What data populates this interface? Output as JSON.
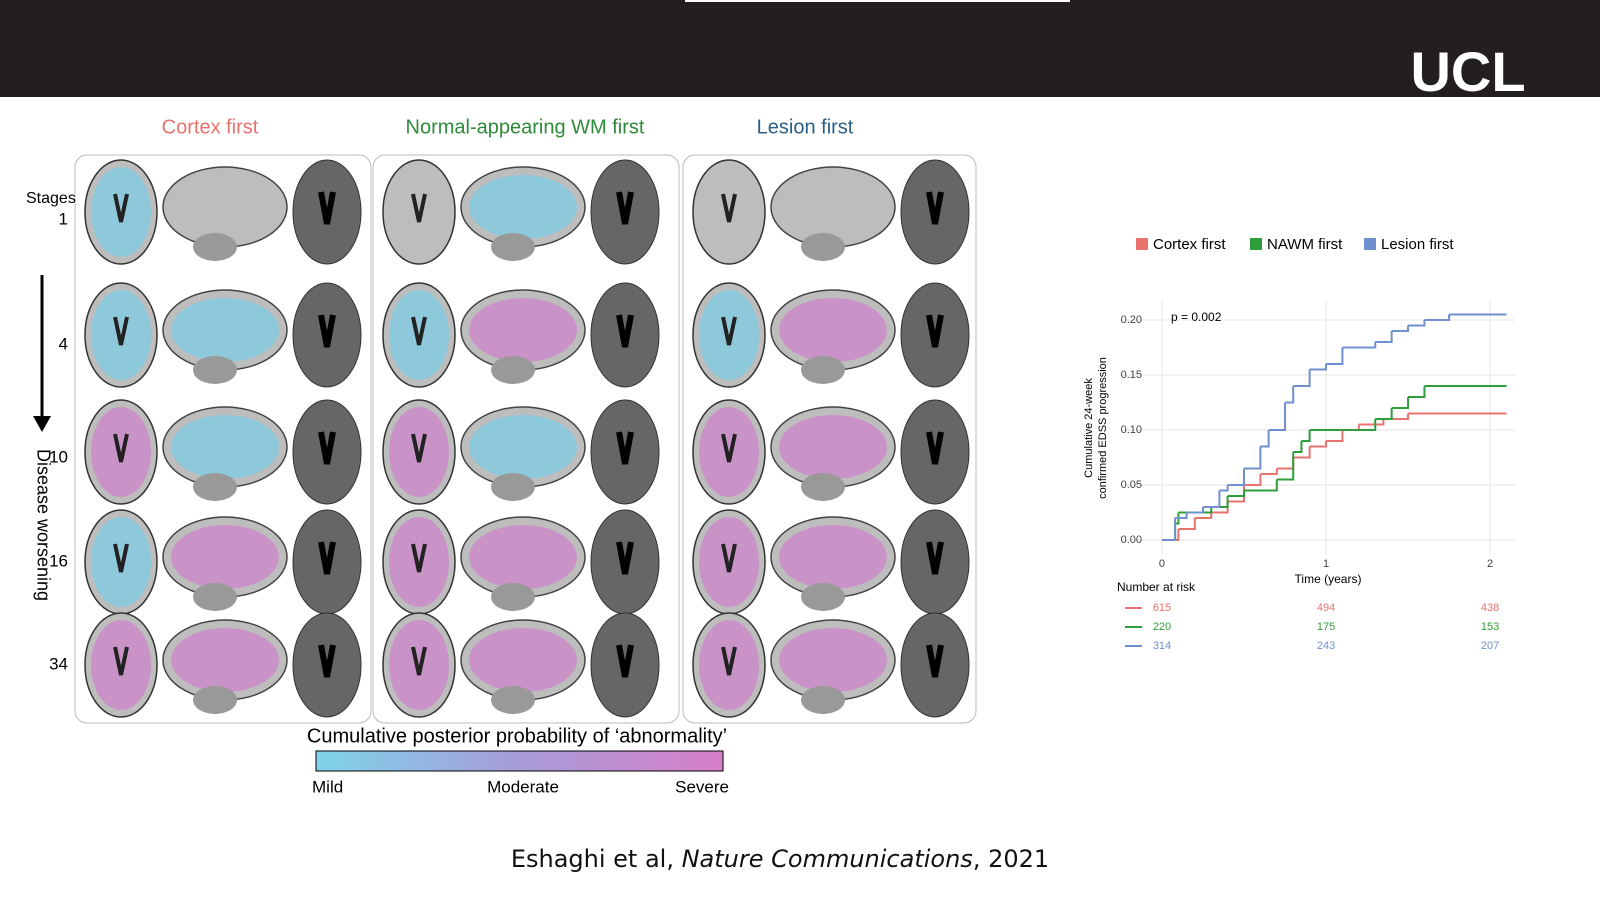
{
  "header": {
    "logo": "UCL"
  },
  "figure": {
    "columns": [
      "Cortex first",
      "Normal-appearing WM first",
      "Lesion first"
    ],
    "stages_label": "Stages",
    "stages": [
      "1",
      "4",
      "10",
      "16",
      "34"
    ],
    "arrow_label": "Disease worsening",
    "colorbar": {
      "title": "Cumulative posterior probability of ‘abnormality’",
      "labels": [
        "Mild",
        "Moderate",
        "Severe"
      ]
    }
  },
  "chart_data": {
    "type": "step",
    "annotation": "p = 0.002",
    "xlabel": "Time (years)",
    "ylabel": [
      "Cumulative 24-week",
      "confirmed EDSS progression"
    ],
    "xlim": [
      -0.256,
      2.152
    ],
    "ylim": [
      -0.0136,
      0.2182
    ],
    "xticks": [
      0,
      1,
      2
    ],
    "yticks": [
      {
        "value": 0,
        "label": "0.00"
      },
      {
        "value": 0.05,
        "label": "0.05"
      },
      {
        "value": 0.1,
        "label": "0.10"
      },
      {
        "value": 0.15,
        "label": "0.15"
      },
      {
        "value": 0.2,
        "label": "0.20"
      }
    ],
    "grid": true,
    "risk_title": "Number at risk",
    "series": [
      {
        "name": "Cortex first",
        "color": "#e8726e",
        "x": [
          0,
          0.1,
          0.2,
          0.3,
          0.4,
          0.5,
          0.6,
          0.7,
          0.8,
          0.9,
          1.0,
          1.1,
          1.2,
          1.35,
          1.5,
          2.1
        ],
        "values": [
          0,
          0.01,
          0.02,
          0.025,
          0.035,
          0.05,
          0.06,
          0.065,
          0.075,
          0.085,
          0.09,
          0.1,
          0.105,
          0.11,
          0.115,
          0.115
        ],
        "at_risk": [
          615,
          494,
          438
        ]
      },
      {
        "name": "NAWM first",
        "color": "#2e9e3a",
        "x": [
          0,
          0.08,
          0.1,
          0.3,
          0.4,
          0.5,
          0.7,
          0.8,
          0.85,
          0.9,
          1.2,
          1.3,
          1.4,
          1.5,
          1.6,
          2.1
        ],
        "values": [
          0,
          0.015,
          0.025,
          0.03,
          0.04,
          0.045,
          0.055,
          0.08,
          0.09,
          0.1,
          0.1,
          0.11,
          0.12,
          0.13,
          0.14,
          0.14
        ],
        "at_risk": [
          220,
          175,
          153
        ]
      },
      {
        "name": "Lesion first",
        "color": "#6f8fce",
        "x": [
          0,
          0.08,
          0.15,
          0.25,
          0.35,
          0.4,
          0.5,
          0.6,
          0.65,
          0.75,
          0.8,
          0.9,
          1.0,
          1.1,
          1.3,
          1.4,
          1.5,
          1.6,
          1.75,
          2.1
        ],
        "values": [
          0,
          0.02,
          0.025,
          0.03,
          0.045,
          0.05,
          0.065,
          0.085,
          0.1,
          0.125,
          0.14,
          0.155,
          0.16,
          0.175,
          0.18,
          0.19,
          0.195,
          0.2,
          0.205,
          0.205
        ],
        "at_risk": [
          314,
          243,
          207
        ]
      }
    ]
  },
  "citation": {
    "authors": "Eshaghi et al, ",
    "journal": "Nature Communications",
    "year": ", 2021"
  }
}
